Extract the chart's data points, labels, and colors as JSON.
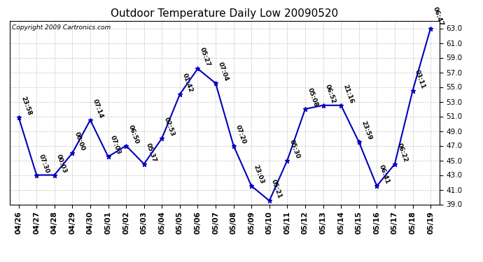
{
  "title": "Outdoor Temperature Daily Low 20090520",
  "copyright": "Copyright 2009 Cartronics.com",
  "dates": [
    "04/26",
    "04/27",
    "04/28",
    "04/29",
    "04/30",
    "05/01",
    "05/02",
    "05/03",
    "05/04",
    "05/05",
    "05/06",
    "05/07",
    "05/08",
    "05/09",
    "05/10",
    "05/11",
    "05/12",
    "05/13",
    "05/14",
    "05/15",
    "05/16",
    "05/17",
    "05/18",
    "05/19"
  ],
  "values": [
    50.9,
    43.0,
    43.0,
    46.0,
    50.5,
    45.5,
    47.0,
    44.5,
    48.0,
    54.0,
    57.5,
    55.5,
    47.0,
    41.5,
    39.5,
    45.0,
    52.0,
    52.5,
    52.5,
    47.5,
    41.5,
    44.5,
    54.5,
    63.0
  ],
  "times": [
    "23:58",
    "07:30",
    "00:03",
    "00:00",
    "07:14",
    "07:03",
    "06:50",
    "05:37",
    "02:53",
    "01:42",
    "05:27",
    "07:04",
    "07:20",
    "23:03",
    "05:21",
    "05:30",
    "05:08",
    "06:52",
    "21:16",
    "23:59",
    "06:41",
    "06:22",
    "03:11",
    "06:47"
  ],
  "line_color": "#0000bb",
  "marker_color": "#0000bb",
  "background_color": "#ffffff",
  "grid_color": "#bbbbbb",
  "ylim": [
    39.0,
    64.0
  ],
  "yticks": [
    39.0,
    41.0,
    43.0,
    45.0,
    47.0,
    49.0,
    51.0,
    53.0,
    55.0,
    57.0,
    59.0,
    61.0,
    63.0
  ],
  "title_fontsize": 11,
  "label_fontsize": 6.5,
  "tick_fontsize": 7.5,
  "copyright_fontsize": 6.5
}
